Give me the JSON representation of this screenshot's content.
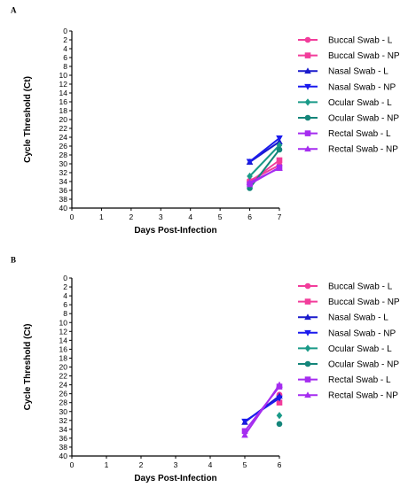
{
  "figure": {
    "panels": [
      "A",
      "B"
    ]
  },
  "chart_data": [
    {
      "type": "line",
      "panel_label": "A",
      "xlabel": "Days Post-Infection",
      "ylabel": "Cycle Threshold (Ct)",
      "xlim": [
        0,
        7
      ],
      "ylim": [
        0,
        40
      ],
      "y_inverted": true,
      "x_ticks": [
        0,
        1,
        2,
        3,
        4,
        5,
        6,
        7
      ],
      "y_ticks": [
        0,
        2,
        4,
        6,
        8,
        10,
        12,
        14,
        16,
        18,
        20,
        22,
        24,
        26,
        28,
        30,
        32,
        34,
        36,
        38,
        40
      ],
      "grid": false,
      "legend_position": "right",
      "series": [
        {
          "name": "Buccal Swab - L",
          "color": "#f23d9b",
          "marker": "circle",
          "x": [
            6,
            7
          ],
          "y": [
            33.8,
            30.3
          ]
        },
        {
          "name": "Buccal Swab - NP",
          "color": "#f23d9b",
          "marker": "square",
          "x": [
            6,
            7
          ],
          "y": [
            34.1,
            29.2
          ]
        },
        {
          "name": "Nasal Swab - L",
          "color": "#1a1acc",
          "marker": "triangle-up",
          "x": [
            6,
            7
          ],
          "y": [
            29.6,
            25.0
          ]
        },
        {
          "name": "Nasal Swab - NP",
          "color": "#1a1aee",
          "marker": "triangle-down",
          "x": [
            6,
            7
          ],
          "y": [
            29.5,
            24.2
          ]
        },
        {
          "name": "Ocular Swab - L",
          "color": "#1a9a88",
          "marker": "diamond",
          "x": [
            6,
            7
          ],
          "y": [
            32.8,
            25.8
          ]
        },
        {
          "name": "Ocular Swab - NP",
          "color": "#14857a",
          "marker": "circle",
          "x": [
            6,
            7
          ],
          "y": [
            35.5,
            26.8
          ]
        },
        {
          "name": "Rectal Swab - L",
          "color": "#a52cf0",
          "marker": "square",
          "x": [
            6,
            7
          ],
          "y": [
            34.6,
            30.8
          ]
        },
        {
          "name": "Rectal Swab - NP",
          "color": "#a52cf0",
          "marker": "triangle-up",
          "x": [
            6,
            7
          ],
          "y": [
            34.2,
            31.0
          ]
        }
      ]
    },
    {
      "type": "line",
      "panel_label": "B",
      "xlabel": "Days Post-Infection",
      "ylabel": "Cycle Threshold (Ct)",
      "xlim": [
        0,
        6
      ],
      "ylim": [
        0,
        40
      ],
      "y_inverted": true,
      "x_ticks": [
        0,
        1,
        2,
        3,
        4,
        5,
        6
      ],
      "y_ticks": [
        0,
        2,
        4,
        6,
        8,
        10,
        12,
        14,
        16,
        18,
        20,
        22,
        24,
        26,
        28,
        30,
        32,
        34,
        36,
        38,
        40
      ],
      "grid": false,
      "legend_position": "right",
      "series": [
        {
          "name": "Buccal Swab - L",
          "color": "#f23d9b",
          "marker": "circle",
          "x": [
            6
          ],
          "y": [
            26.2
          ]
        },
        {
          "name": "Buccal Swab - NP",
          "color": "#f23d9b",
          "marker": "square",
          "x": [
            6
          ],
          "y": [
            28.0
          ]
        },
        {
          "name": "Nasal Swab - L",
          "color": "#1a1acc",
          "marker": "triangle-up",
          "x": [
            5,
            6
          ],
          "y": [
            32.4,
            26.5
          ]
        },
        {
          "name": "Nasal Swab - NP",
          "color": "#1a1aee",
          "marker": "triangle-down",
          "x": [
            5,
            6
          ],
          "y": [
            32.2,
            27.0
          ]
        },
        {
          "name": "Ocular Swab - L",
          "color": "#1a9a88",
          "marker": "diamond",
          "x": [
            6
          ],
          "y": [
            30.9
          ]
        },
        {
          "name": "Ocular Swab - NP",
          "color": "#14857a",
          "marker": "circle",
          "x": [
            6
          ],
          "y": [
            32.8
          ]
        },
        {
          "name": "Rectal Swab - L",
          "color": "#a52cf0",
          "marker": "square",
          "x": [
            5,
            6
          ],
          "y": [
            34.4,
            24.4
          ]
        },
        {
          "name": "Rectal Swab - NP",
          "color": "#a52cf0",
          "marker": "triangle-up",
          "x": [
            5,
            6
          ],
          "y": [
            35.3,
            24.0
          ]
        }
      ]
    }
  ]
}
